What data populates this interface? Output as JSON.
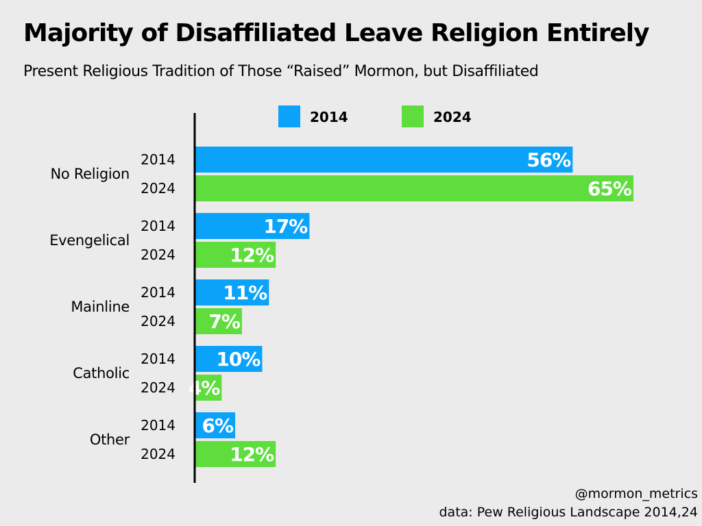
{
  "title": "Majority of Disaffiliated Leave Religion Entirely",
  "subtitle": "Present Religious Tradition of Those “Raised” Mormon, but Disaffiliated",
  "footer": {
    "handle": "@mormon_metrics",
    "source": "data: Pew Religious Landscape 2014,24"
  },
  "colors": {
    "2014": "#0ba3f9",
    "2024": "#5edd3c",
    "axis": "#000000",
    "background": "#ebebeb"
  },
  "chart_data": {
    "type": "bar",
    "orientation": "horizontal",
    "title": "Majority of Disaffiliated Leave Religion Entirely",
    "subtitle": "Present Religious Tradition of Those “Raised” Mormon, but Disaffiliated",
    "categories": [
      "No Religion",
      "Evengelical",
      "Mainline",
      "Catholic",
      "Other"
    ],
    "series": [
      {
        "name": "2014",
        "color": "#0ba3f9",
        "values": [
          56,
          17,
          11,
          10,
          6
        ]
      },
      {
        "name": "2024",
        "color": "#5edd3c",
        "values": [
          65,
          12,
          7,
          4,
          12
        ]
      }
    ],
    "value_suffix": "%",
    "xlim": [
      0,
      65
    ],
    "legend_position": "top",
    "grid": false
  }
}
